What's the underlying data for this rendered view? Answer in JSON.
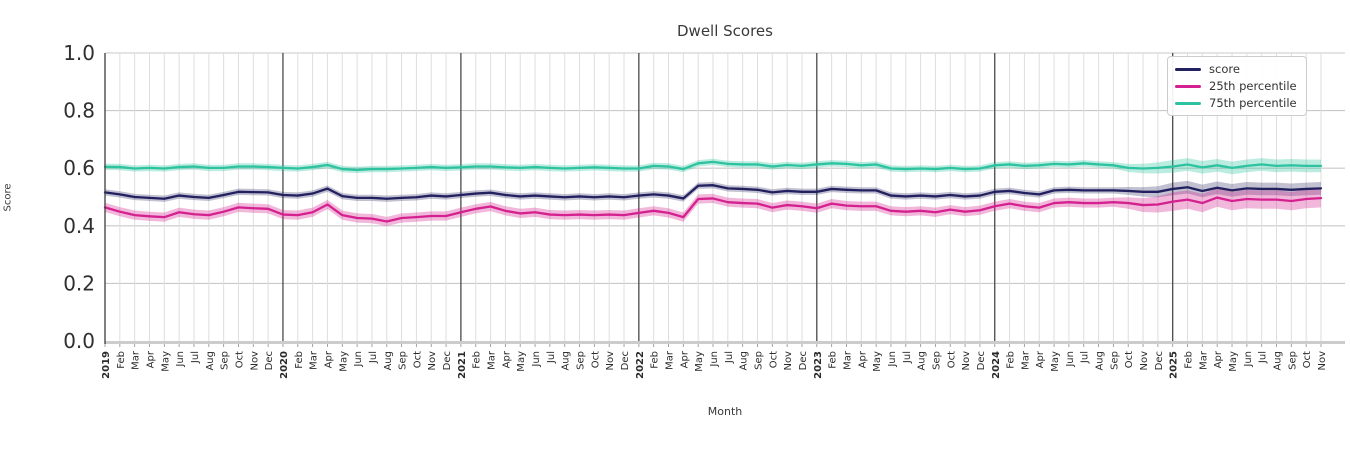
{
  "chart_data": {
    "type": "line",
    "title": "Dwell Scores",
    "xlabel": "Month",
    "ylabel": "Score",
    "ylim": [
      0.0,
      1.0
    ],
    "y_ticks": [
      "0.0",
      "0.2",
      "0.4",
      "0.6",
      "0.8",
      "1.0"
    ],
    "grid": true,
    "legend_position": "upper right",
    "x_tick_labels": [
      "2019",
      "Feb",
      "Mar",
      "Apr",
      "May",
      "Jun",
      "Jul",
      "Aug",
      "Sep",
      "Oct",
      "Nov",
      "Dec",
      "2020",
      "Feb",
      "Mar",
      "Apr",
      "May",
      "Jun",
      "Jul",
      "Aug",
      "Sep",
      "Oct",
      "Nov",
      "Dec",
      "2021",
      "Feb",
      "Mar",
      "Apr",
      "May",
      "Jun",
      "Jul",
      "Aug",
      "Sep",
      "Oct",
      "Nov",
      "Dec",
      "2022",
      "Feb",
      "Mar",
      "Apr",
      "May",
      "Jun",
      "Jul",
      "Aug",
      "Sep",
      "Oct",
      "Nov",
      "Dec",
      "2023",
      "Feb",
      "Mar",
      "Apr",
      "May",
      "Jun",
      "Jul",
      "Aug",
      "Sep",
      "Oct",
      "Nov",
      "Dec",
      "2024",
      "Feb",
      "Mar",
      "Apr",
      "May",
      "Jun",
      "Jul",
      "Aug",
      "Sep",
      "Oct",
      "Nov",
      "Dec",
      "2025",
      "Feb",
      "Mar",
      "Apr",
      "May",
      "Jun",
      "Jul",
      "Aug",
      "Sep",
      "Oct",
      "Nov"
    ],
    "year_separator_indices": [
      12,
      24,
      36,
      48,
      60,
      72
    ],
    "band_widen_from_index": 69,
    "band_widen_max_factor": 2.0,
    "series": [
      {
        "name": "score",
        "color": "#22205f",
        "band_opacity": 0.28,
        "band_half_width": 0.011,
        "values": [
          0.516,
          0.509,
          0.5,
          0.497,
          0.494,
          0.505,
          0.5,
          0.497,
          0.507,
          0.518,
          0.517,
          0.516,
          0.507,
          0.505,
          0.512,
          0.529,
          0.503,
          0.497,
          0.497,
          0.494,
          0.497,
          0.499,
          0.505,
          0.502,
          0.507,
          0.512,
          0.515,
          0.507,
          0.502,
          0.505,
          0.502,
          0.499,
          0.502,
          0.499,
          0.502,
          0.499,
          0.505,
          0.509,
          0.505,
          0.495,
          0.539,
          0.541,
          0.53,
          0.528,
          0.525,
          0.516,
          0.521,
          0.518,
          0.518,
          0.528,
          0.525,
          0.523,
          0.523,
          0.505,
          0.502,
          0.505,
          0.502,
          0.507,
          0.502,
          0.505,
          0.518,
          0.521,
          0.514,
          0.509,
          0.523,
          0.525,
          0.523,
          0.523,
          0.523,
          0.521,
          0.518,
          0.518,
          0.528,
          0.534,
          0.521,
          0.532,
          0.523,
          0.53,
          0.528,
          0.528,
          0.525,
          0.528,
          0.53
        ]
      },
      {
        "name": "25th percentile",
        "color": "#d5218f",
        "band_opacity": 0.32,
        "band_half_width": 0.016,
        "values": [
          0.464,
          0.449,
          0.437,
          0.433,
          0.43,
          0.447,
          0.44,
          0.437,
          0.449,
          0.464,
          0.461,
          0.459,
          0.439,
          0.437,
          0.447,
          0.474,
          0.437,
          0.427,
          0.425,
          0.415,
          0.427,
          0.43,
          0.434,
          0.434,
          0.447,
          0.459,
          0.467,
          0.452,
          0.443,
          0.447,
          0.439,
          0.437,
          0.439,
          0.437,
          0.439,
          0.437,
          0.445,
          0.452,
          0.445,
          0.43,
          0.493,
          0.495,
          0.482,
          0.479,
          0.477,
          0.463,
          0.472,
          0.468,
          0.461,
          0.477,
          0.47,
          0.468,
          0.468,
          0.452,
          0.449,
          0.452,
          0.447,
          0.456,
          0.449,
          0.454,
          0.468,
          0.477,
          0.468,
          0.463,
          0.479,
          0.482,
          0.479,
          0.479,
          0.482,
          0.479,
          0.472,
          0.474,
          0.484,
          0.491,
          0.479,
          0.498,
          0.486,
          0.493,
          0.491,
          0.491,
          0.486,
          0.493,
          0.496
        ]
      },
      {
        "name": "75th percentile",
        "color": "#2dc3a0",
        "band_opacity": 0.32,
        "band_half_width": 0.011,
        "values": [
          0.605,
          0.604,
          0.599,
          0.601,
          0.599,
          0.604,
          0.606,
          0.601,
          0.601,
          0.606,
          0.606,
          0.604,
          0.601,
          0.599,
          0.604,
          0.611,
          0.597,
          0.594,
          0.597,
          0.597,
          0.599,
          0.601,
          0.604,
          0.601,
          0.603,
          0.606,
          0.606,
          0.603,
          0.601,
          0.604,
          0.601,
          0.599,
          0.601,
          0.603,
          0.601,
          0.599,
          0.599,
          0.608,
          0.606,
          0.597,
          0.617,
          0.622,
          0.615,
          0.613,
          0.613,
          0.606,
          0.611,
          0.608,
          0.613,
          0.617,
          0.615,
          0.61,
          0.613,
          0.599,
          0.597,
          0.599,
          0.597,
          0.601,
          0.597,
          0.599,
          0.61,
          0.613,
          0.608,
          0.61,
          0.615,
          0.613,
          0.617,
          0.613,
          0.61,
          0.601,
          0.599,
          0.601,
          0.606,
          0.613,
          0.603,
          0.61,
          0.601,
          0.608,
          0.613,
          0.608,
          0.61,
          0.608,
          0.608
        ]
      }
    ]
  }
}
